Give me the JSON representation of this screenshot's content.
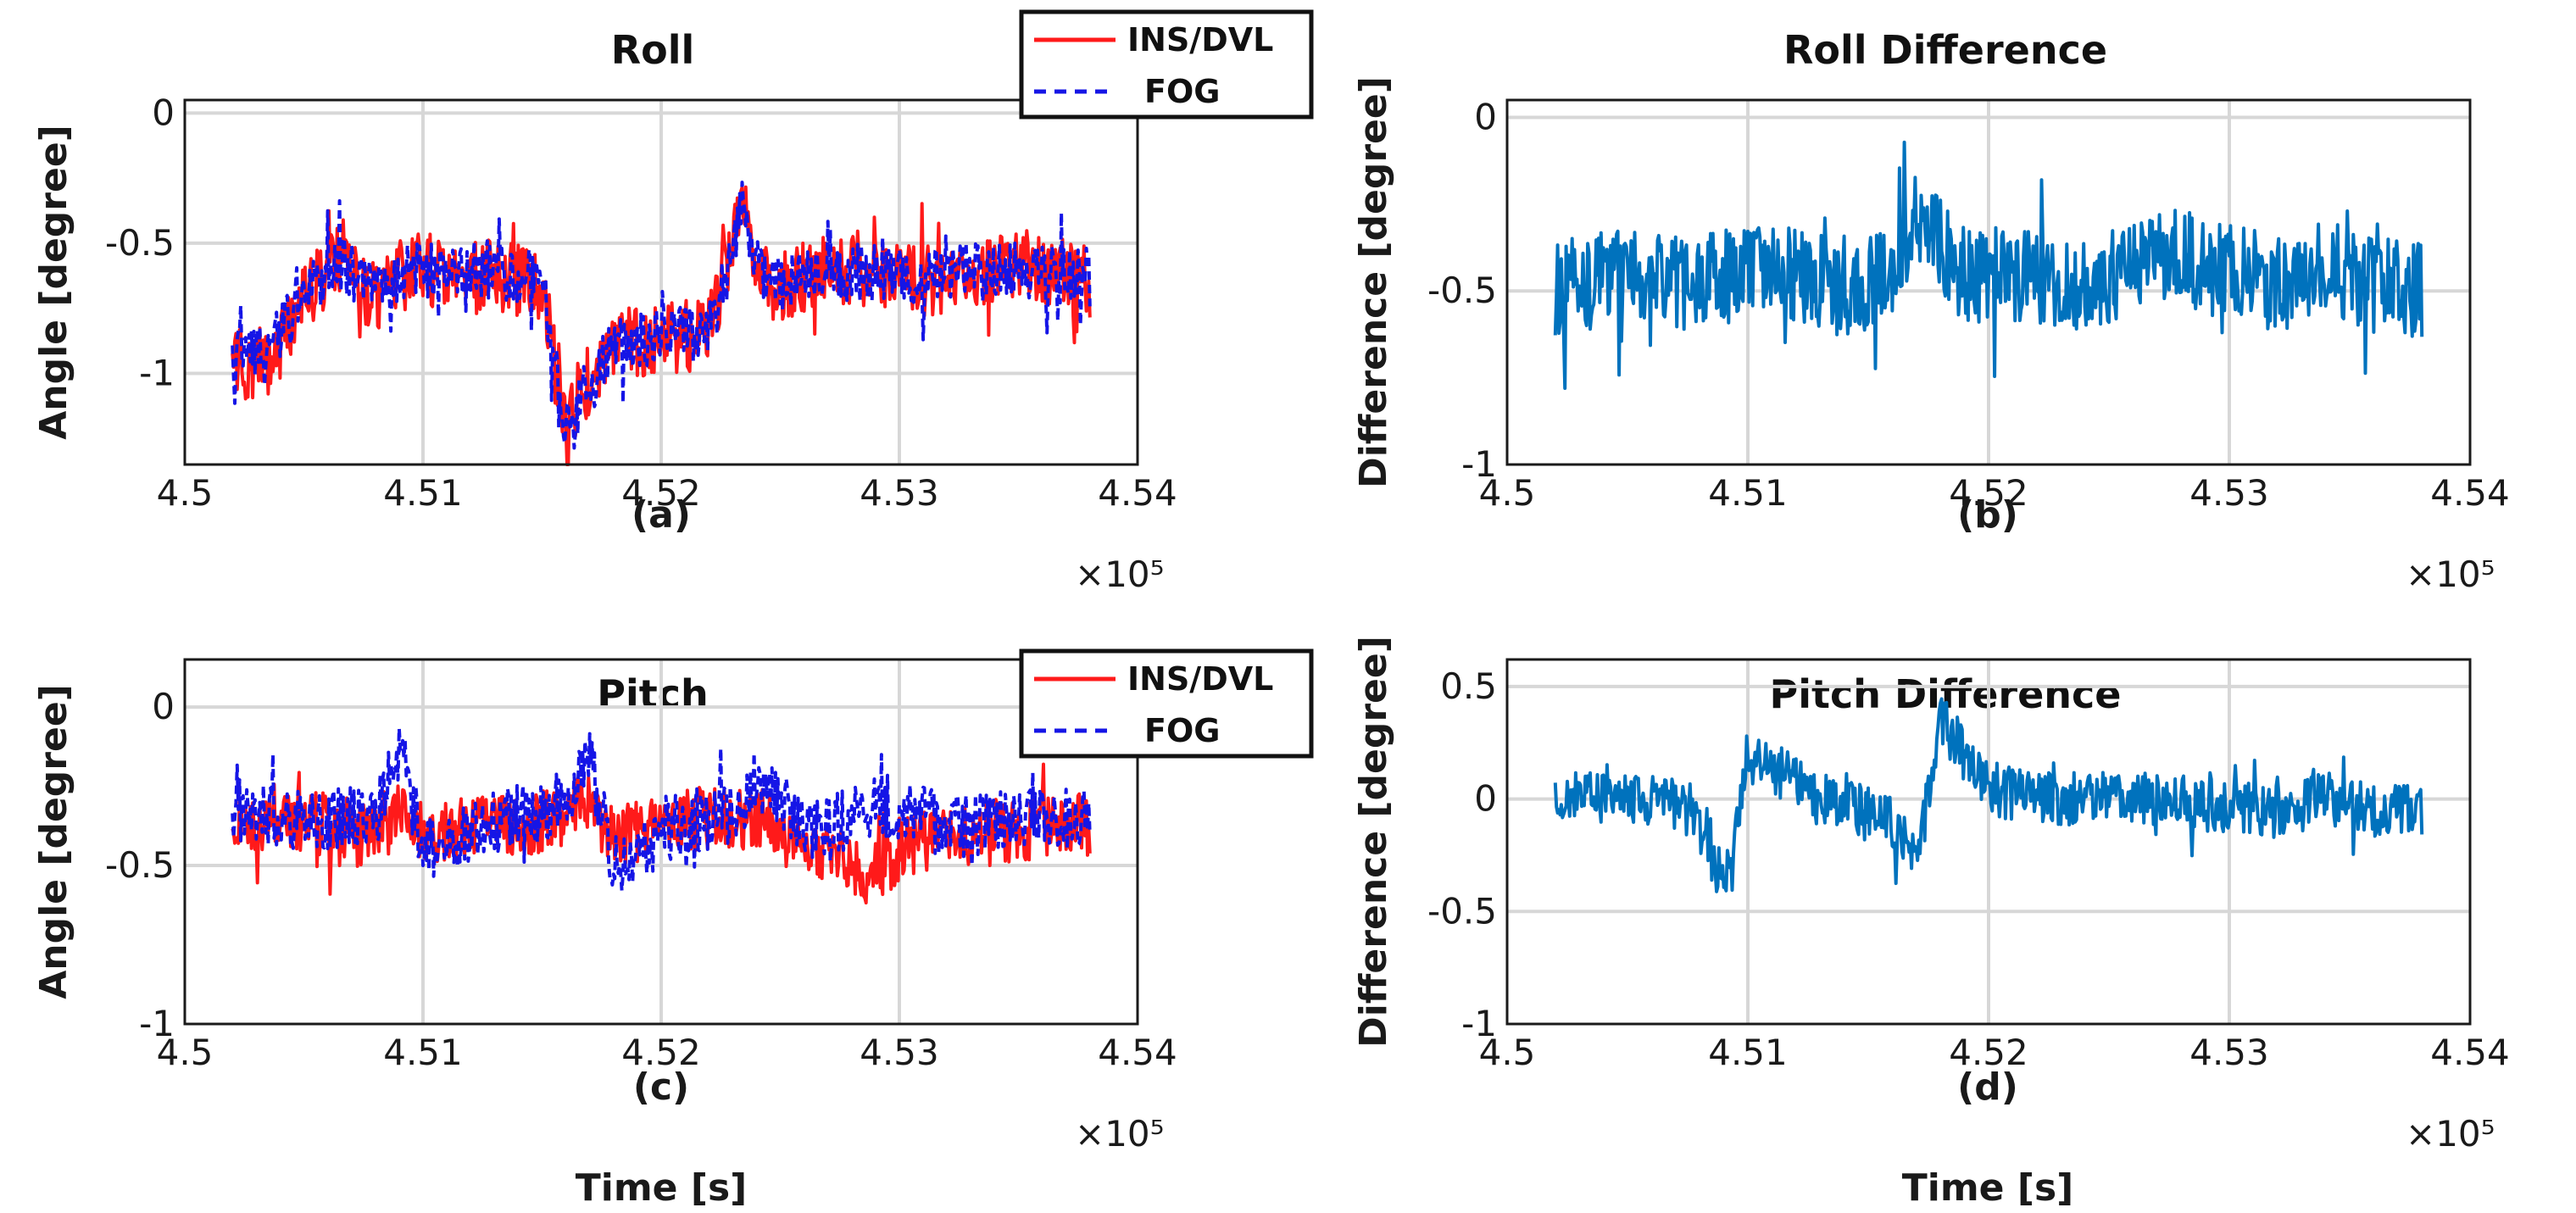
{
  "chart_data": [
    {
      "type": "line",
      "title": "Roll",
      "caption": "(a)",
      "xlabel": "",
      "ylabel": "Angle [degree]",
      "xlim": [
        450200,
        453800
      ],
      "ylim": [
        -1.35,
        0.05
      ],
      "xticks": [
        450000,
        451000,
        452000,
        453000,
        454000
      ],
      "xtick_labels": [
        "4.5",
        "4.51",
        "4.52",
        "4.53",
        "4.54"
      ],
      "yticks": [
        0,
        -0.5,
        -1
      ],
      "ytick_labels": [
        "0",
        "-0.5",
        "-1"
      ],
      "x_exponent": "×10⁵",
      "grid": true,
      "legend": {
        "position": "top-right",
        "entries": [
          "INS/DVL",
          "FOG"
        ]
      },
      "x": [
        450200,
        450350,
        450500,
        450650,
        450800,
        450950,
        451100,
        451300,
        451500,
        451600,
        451650,
        451800,
        452000,
        452200,
        452300,
        452350,
        452400,
        452500,
        452700,
        452900,
        453100,
        453300,
        453500,
        453650,
        453800
      ],
      "series": [
        {
          "name": "INS/DVL",
          "color": "#ff1a1a",
          "style": "solid",
          "noise": 0.14,
          "values": [
            -0.97,
            -0.95,
            -0.72,
            -0.55,
            -0.72,
            -0.58,
            -0.62,
            -0.62,
            -0.66,
            -1.25,
            -1.1,
            -0.88,
            -0.87,
            -0.85,
            -0.52,
            -0.3,
            -0.62,
            -0.67,
            -0.6,
            -0.6,
            -0.65,
            -0.62,
            -0.58,
            -0.6,
            -0.65
          ]
        },
        {
          "name": "FOG",
          "color": "#1515e6",
          "style": "dashed",
          "noise": 0.11,
          "values": [
            -0.94,
            -0.92,
            -0.7,
            -0.57,
            -0.7,
            -0.6,
            -0.6,
            -0.6,
            -0.64,
            -1.2,
            -1.12,
            -0.9,
            -0.86,
            -0.84,
            -0.55,
            -0.33,
            -0.6,
            -0.65,
            -0.62,
            -0.61,
            -0.63,
            -0.6,
            -0.6,
            -0.62,
            -0.63
          ]
        }
      ]
    },
    {
      "type": "line",
      "title": "Roll Difference",
      "caption": "(b)",
      "xlabel": "",
      "ylabel": "Difference [degree]",
      "xlim": [
        450200,
        453800
      ],
      "ylim": [
        -1.0,
        0.05
      ],
      "xticks": [
        450000,
        451000,
        452000,
        453000,
        454000
      ],
      "xtick_labels": [
        "4.5",
        "4.51",
        "4.52",
        "4.53",
        "4.54"
      ],
      "yticks": [
        0,
        -0.5,
        -1
      ],
      "ytick_labels": [
        "0",
        "-0.5",
        "-1"
      ],
      "x_exponent": "×10⁵",
      "grid": true,
      "x": [
        450200,
        450500,
        450800,
        451100,
        451400,
        451600,
        451700,
        451900,
        452200,
        452400,
        452600,
        452800,
        453000,
        453200,
        453400,
        453600,
        453800
      ],
      "series": [
        {
          "name": "Difference",
          "color": "#0072bd",
          "style": "solid",
          "noise": 0.14,
          "values": [
            -0.5,
            -0.45,
            -0.48,
            -0.42,
            -0.5,
            -0.45,
            -0.3,
            -0.45,
            -0.45,
            -0.5,
            -0.42,
            -0.4,
            -0.45,
            -0.48,
            -0.42,
            -0.48,
            -0.5
          ]
        }
      ]
    },
    {
      "type": "line",
      "title": "Pitch",
      "caption": "(c)",
      "xlabel": "Time [s]",
      "ylabel": "Angle [degree]",
      "xlim": [
        450200,
        453800
      ],
      "ylim": [
        -1.0,
        0.15
      ],
      "xticks": [
        450000,
        451000,
        452000,
        453000,
        454000
      ],
      "xtick_labels": [
        "4.5",
        "4.51",
        "4.52",
        "4.53",
        "4.54"
      ],
      "yticks": [
        0,
        -0.5,
        -1
      ],
      "ytick_labels": [
        "0",
        "-0.5",
        "-1"
      ],
      "x_exponent": "×10⁵",
      "grid": true,
      "legend": {
        "position": "top-right",
        "entries": [
          "INS/DVL",
          "FOG"
        ]
      },
      "x": [
        450200,
        450500,
        450800,
        450900,
        451000,
        451300,
        451600,
        451700,
        451800,
        452100,
        452300,
        452400,
        452600,
        452800,
        452900,
        453000,
        453200,
        453400,
        453600,
        453800
      ],
      "series": [
        {
          "name": "INS/DVL",
          "color": "#ff1a1a",
          "style": "solid",
          "noise": 0.1,
          "values": [
            -0.35,
            -0.36,
            -0.4,
            -0.3,
            -0.4,
            -0.38,
            -0.35,
            -0.3,
            -0.42,
            -0.35,
            -0.36,
            -0.34,
            -0.45,
            -0.5,
            -0.55,
            -0.45,
            -0.4,
            -0.4,
            -0.38,
            -0.37
          ]
        },
        {
          "name": "FOG",
          "color": "#1515e6",
          "style": "dashed",
          "noise": 0.1,
          "values": [
            -0.33,
            -0.35,
            -0.35,
            -0.12,
            -0.45,
            -0.37,
            -0.3,
            -0.15,
            -0.5,
            -0.36,
            -0.34,
            -0.22,
            -0.38,
            -0.35,
            -0.3,
            -0.32,
            -0.38,
            -0.36,
            -0.35,
            -0.36
          ]
        }
      ]
    },
    {
      "type": "line",
      "title": "Pitch Difference",
      "caption": "(d)",
      "xlabel": "Time [s]",
      "ylabel": "Difference [degree]",
      "xlim": [
        450200,
        453800
      ],
      "ylim": [
        -1.0,
        0.62
      ],
      "xticks": [
        450000,
        451000,
        452000,
        453000,
        454000
      ],
      "xtick_labels": [
        "4.5",
        "4.51",
        "4.52",
        "4.53",
        "4.54"
      ],
      "yticks": [
        0.5,
        0,
        -0.5,
        -1
      ],
      "ytick_labels": [
        "0.5",
        "0",
        "-0.5",
        "-1"
      ],
      "x_exponent": "×10⁵",
      "grid": true,
      "x": [
        450200,
        450500,
        450800,
        450900,
        451000,
        451300,
        451600,
        451700,
        451800,
        452000,
        452200,
        452400,
        452600,
        452800,
        453000,
        453200,
        453400,
        453600,
        453800
      ],
      "series": [
        {
          "name": "Difference",
          "color": "#0072bd",
          "style": "solid",
          "noise": 0.12,
          "values": [
            0.0,
            0.0,
            -0.05,
            -0.4,
            0.2,
            0.0,
            -0.1,
            -0.3,
            0.35,
            0.05,
            0.0,
            0.0,
            0.0,
            0.0,
            -0.05,
            -0.05,
            0.0,
            -0.05,
            -0.05
          ]
        }
      ]
    }
  ]
}
